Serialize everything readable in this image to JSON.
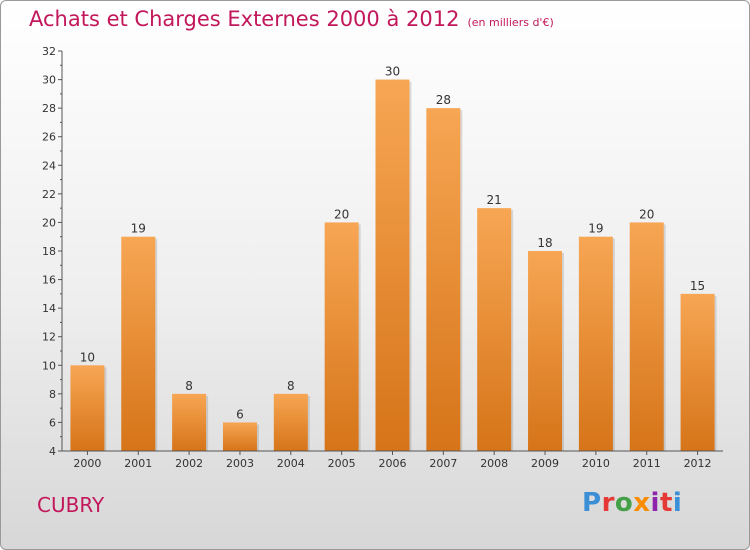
{
  "header": {
    "title": "Achats et Charges Externes 2000 à 2012",
    "subtitle": "(en milliers d'€)"
  },
  "footer": {
    "city": "CUBRY",
    "logo_text": "Proxiti"
  },
  "colors": {
    "title": "#c2185b",
    "bar_top": "#f7a654",
    "bar_bottom": "#d67418",
    "axis": "#555555",
    "logo": [
      "#3a8fd6",
      "#e53935",
      "#43a047",
      "#fb8c00",
      "#8e24aa",
      "#e53935",
      "#3a8fd6"
    ]
  },
  "chart_data": {
    "type": "bar",
    "categories": [
      "2000",
      "2001",
      "2002",
      "2003",
      "2004",
      "2005",
      "2006",
      "2007",
      "2008",
      "2009",
      "2010",
      "2011",
      "2012"
    ],
    "values": [
      10,
      19,
      8,
      6,
      8,
      20,
      30,
      28,
      21,
      18,
      19,
      20,
      15
    ],
    "title": "Achats et Charges Externes 2000 à 2012",
    "subtitle": "(en milliers d'€)",
    "ylim": [
      4,
      32
    ],
    "yticks": [
      4,
      6,
      8,
      10,
      12,
      14,
      16,
      18,
      20,
      22,
      24,
      26,
      28,
      30,
      32
    ],
    "data_labels": true,
    "grid": false
  }
}
